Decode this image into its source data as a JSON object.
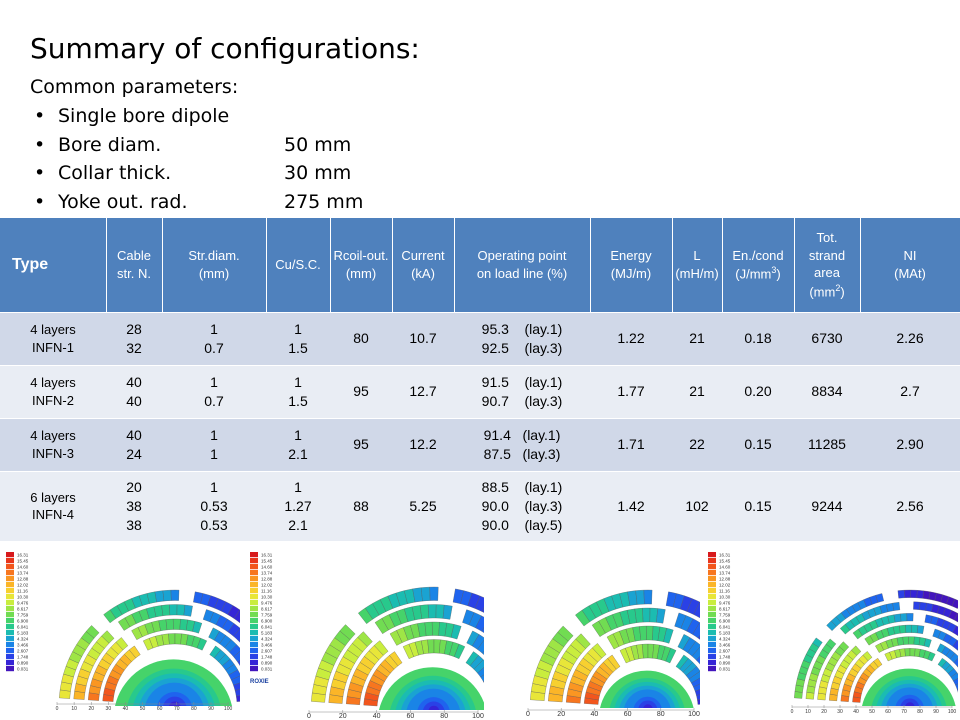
{
  "title": "Summary of configurations:",
  "subtitle": "Common parameters:",
  "bullets": [
    {
      "label": "Single bore dipole",
      "value": ""
    },
    {
      "label": "Bore diam.",
      "value": "50 mm"
    },
    {
      "label": "Collar thick.",
      "value": "30 mm"
    },
    {
      "label": "Yoke out. rad.",
      "value": "275 mm"
    }
  ],
  "table": {
    "headers": {
      "type": "Type",
      "cable": [
        "Cable",
        "str. N."
      ],
      "strdiam": [
        "Str.diam.",
        "(mm)"
      ],
      "cusc": "Cu/S.C.",
      "rcoil": [
        "Rcoil-out.",
        "(mm)"
      ],
      "current": [
        "Current",
        "(kA)"
      ],
      "op": [
        "Operating point",
        "on load line (%)"
      ],
      "energy": [
        "Energy",
        "(MJ/m)"
      ],
      "l": [
        "L",
        "(mH/m)"
      ],
      "encond": [
        "En./cond",
        "(J/mm",
        "3",
        ")"
      ],
      "area": [
        "Tot.",
        "strand",
        "area",
        "(mm",
        "2",
        ")"
      ],
      "ni": [
        "NI",
        "(MAt)"
      ]
    },
    "rows": [
      {
        "type": [
          "4 layers",
          "INFN-1"
        ],
        "cable": [
          "28",
          "32"
        ],
        "strdiam": [
          "1",
          "0.7"
        ],
        "cusc": [
          "1",
          "1.5"
        ],
        "rcoil": "80",
        "current": "10.7",
        "op": [
          "95.3    (lay.1)",
          "92.5    (lay.3)"
        ],
        "energy": "1.22",
        "l": "21",
        "encond": "0.18",
        "area": "6730",
        "ni": "2.26"
      },
      {
        "type": [
          "4 layers",
          "INFN-2"
        ],
        "cable": [
          "40",
          "40"
        ],
        "strdiam": [
          "1",
          "0.7"
        ],
        "cusc": [
          "1",
          "1.5"
        ],
        "rcoil": "95",
        "current": "12.7",
        "op": [
          "91.5    (lay.1)",
          "90.7    (lay.3)"
        ],
        "energy": "1.77",
        "l": "21",
        "encond": "0.20",
        "area": "8834",
        "ni": "2.7"
      },
      {
        "type": [
          "4 layers",
          "INFN-3"
        ],
        "cable": [
          "40",
          "24"
        ],
        "strdiam": [
          "1",
          "1"
        ],
        "cusc": [
          "1",
          "2.1"
        ],
        "rcoil": "95",
        "current": "12.2",
        "op": [
          "91.4   (lay.1)",
          "87.5   (lay.3)"
        ],
        "energy": "1.71",
        "l": "22",
        "encond": "0.15",
        "area": "11285",
        "ni": "2.90"
      },
      {
        "type": [
          "6 layers",
          "INFN-4"
        ],
        "cable": [
          "20",
          "38",
          "38"
        ],
        "strdiam": [
          "1",
          "0.53",
          "0.53"
        ],
        "cusc": [
          "1",
          "1.27",
          "2.1"
        ],
        "rcoil": "88",
        "current": "5.25",
        "op": [
          "88.5    (lay.1)",
          "90.0    (lay.3)",
          "90.0    (lay.5)"
        ],
        "energy": "1.42",
        "l": "102",
        "encond": "0.15",
        "area": "9244",
        "ni": "2.56"
      }
    ]
  },
  "plots": {
    "label": "ROXIE",
    "axis_ticks": [
      "0",
      "20",
      "40",
      "60",
      "80",
      "100"
    ],
    "axis_ticks_fine": [
      "0",
      "10",
      "20",
      "30",
      "40",
      "50",
      "60",
      "70",
      "80",
      "90",
      "100"
    ],
    "legend_values": [
      "16.31",
      "15.45",
      "14.60",
      "13.74",
      "12.88",
      "12.02",
      "11.16",
      "10.30",
      "9.476",
      "8.617",
      "7.759",
      "6.900",
      "6.041",
      "5.183",
      "4.324",
      "3.466",
      "2.607",
      "1.748",
      "0.890",
      "0.031"
    ],
    "palette": [
      "#d7191c",
      "#e8361c",
      "#f2561d",
      "#f7761f",
      "#fa9622",
      "#fbb528",
      "#f7d030",
      "#e8e639",
      "#c9ed3e",
      "#9ee546",
      "#71dc52",
      "#46d36a",
      "#28c98c",
      "#1bbcb1",
      "#1aa3d2",
      "#1a84e6",
      "#1f63ee",
      "#2a41e6",
      "#3524d6",
      "#4315bd"
    ]
  }
}
